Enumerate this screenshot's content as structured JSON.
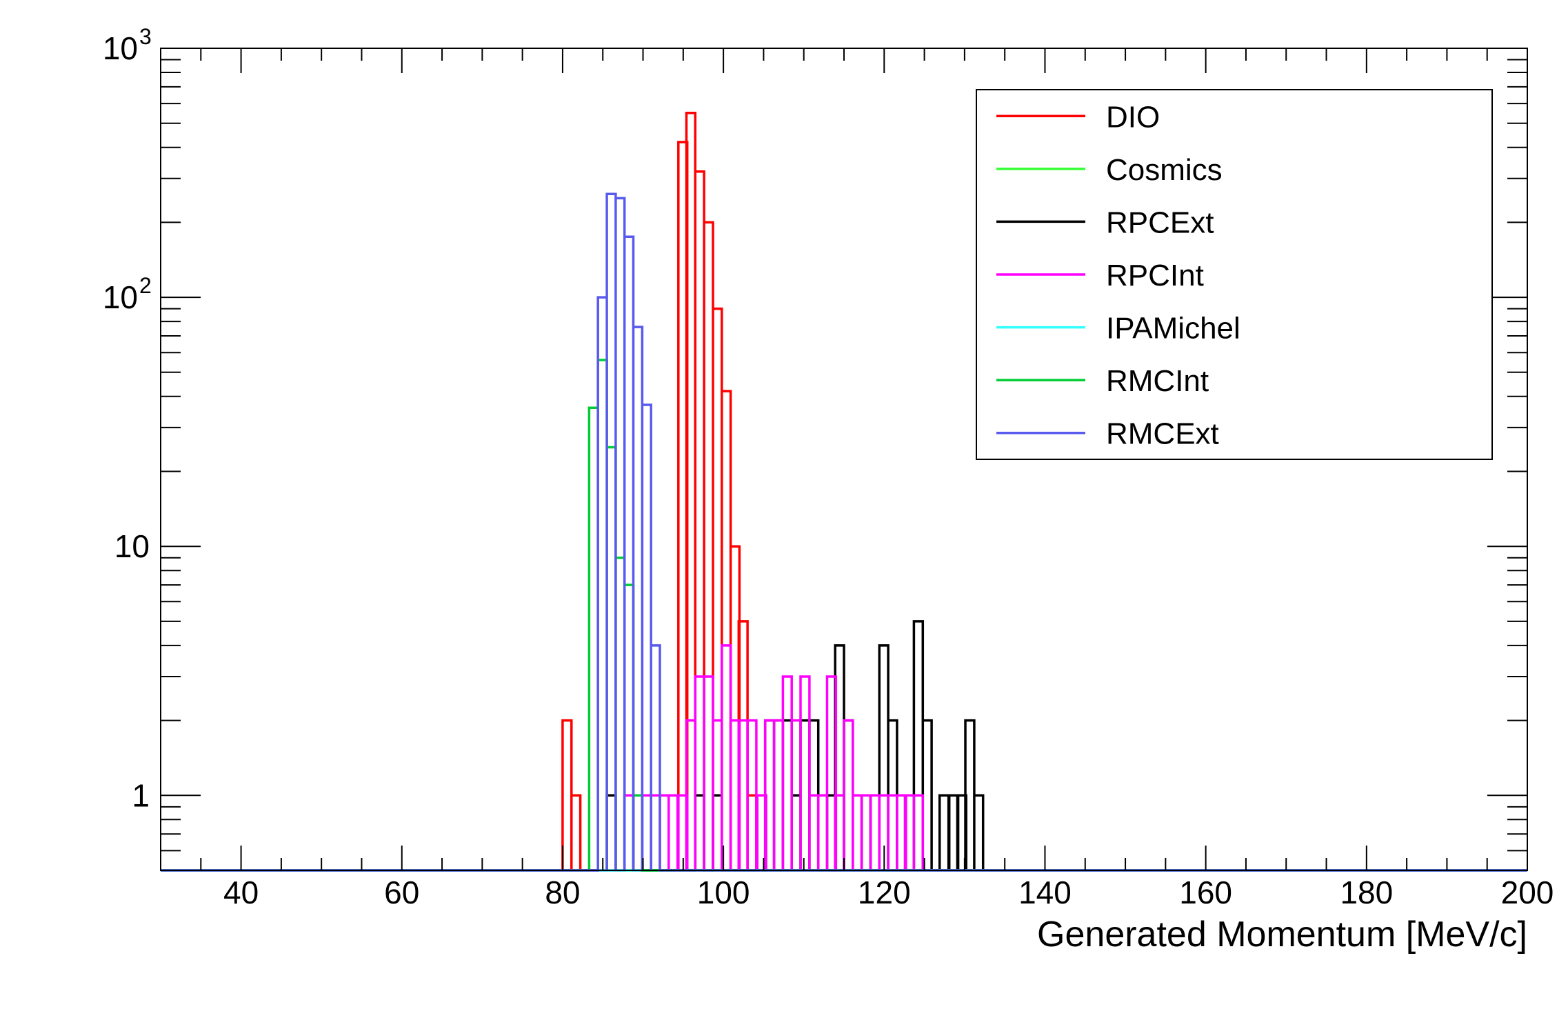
{
  "chart_data": {
    "type": "histogram",
    "title": "",
    "xlabel": "Generated Momentum [MeV/c]",
    "ylabel": "",
    "xlim": [
      30,
      200
    ],
    "ylim": [
      0.5,
      1000
    ],
    "y_log": true,
    "grid": false,
    "legend_position": "top-right",
    "bin_width": 1.1,
    "x_ticks": [
      {
        "value": 40,
        "label": "40"
      },
      {
        "value": 60,
        "label": "60"
      },
      {
        "value": 80,
        "label": "80"
      },
      {
        "value": 100,
        "label": "100"
      },
      {
        "value": 120,
        "label": "120"
      },
      {
        "value": 140,
        "label": "140"
      },
      {
        "value": 160,
        "label": "160"
      },
      {
        "value": 180,
        "label": "180"
      },
      {
        "value": 200,
        "label": "200"
      }
    ],
    "y_ticks": [
      {
        "value": 1,
        "label": "1"
      },
      {
        "value": 10,
        "label": "10"
      },
      {
        "value": 100,
        "base": "10",
        "exp": "2"
      },
      {
        "value": 1000,
        "base": "10",
        "exp": "3"
      }
    ],
    "series": [
      {
        "name": "DIO",
        "color": "#ff0000",
        "bins": [
          [
            80.0,
            2
          ],
          [
            81.1,
            1
          ],
          [
            94.4,
            420
          ],
          [
            95.4,
            550
          ],
          [
            96.5,
            320
          ],
          [
            97.6,
            200
          ],
          [
            98.7,
            90
          ],
          [
            99.8,
            42
          ],
          [
            100.9,
            10
          ],
          [
            101.9,
            5
          ],
          [
            103.0,
            1
          ]
        ]
      },
      {
        "name": "Cosmics",
        "color": "#33ff33",
        "bins": []
      },
      {
        "name": "RPCExt",
        "color": "#000000",
        "bins": [
          [
            85.5,
            1
          ],
          [
            87.7,
            1
          ],
          [
            96.5,
            1
          ],
          [
            98.7,
            1
          ],
          [
            104.2,
            1
          ],
          [
            105.2,
            2
          ],
          [
            106.3,
            2
          ],
          [
            107.4,
            2
          ],
          [
            108.5,
            1
          ],
          [
            109.6,
            2
          ],
          [
            110.7,
            2
          ],
          [
            111.8,
            1
          ],
          [
            112.9,
            1
          ],
          [
            113.9,
            4
          ],
          [
            115.0,
            2
          ],
          [
            116.1,
            1
          ],
          [
            117.2,
            1
          ],
          [
            118.3,
            1
          ],
          [
            119.4,
            4
          ],
          [
            120.5,
            2
          ],
          [
            121.6,
            1
          ],
          [
            122.6,
            1
          ],
          [
            123.7,
            5
          ],
          [
            124.8,
            2
          ],
          [
            126.9,
            1
          ],
          [
            128.1,
            1
          ],
          [
            129.1,
            1
          ],
          [
            130.1,
            2
          ],
          [
            131.2,
            1
          ]
        ]
      },
      {
        "name": "RPCInt",
        "color": "#ff00ff",
        "bins": [
          [
            87.7,
            1
          ],
          [
            89.9,
            1
          ],
          [
            91.0,
            1
          ],
          [
            92.1,
            1
          ],
          [
            93.2,
            1
          ],
          [
            94.4,
            1
          ],
          [
            95.4,
            2
          ],
          [
            96.5,
            3
          ],
          [
            97.6,
            3
          ],
          [
            98.7,
            2
          ],
          [
            99.8,
            4
          ],
          [
            100.9,
            2
          ],
          [
            101.9,
            2
          ],
          [
            103.0,
            2
          ],
          [
            104.2,
            1
          ],
          [
            105.2,
            2
          ],
          [
            106.3,
            2
          ],
          [
            107.4,
            3
          ],
          [
            108.5,
            2
          ],
          [
            109.6,
            3
          ],
          [
            110.7,
            1
          ],
          [
            111.8,
            1
          ],
          [
            112.9,
            3
          ],
          [
            113.9,
            1
          ],
          [
            115.0,
            2
          ],
          [
            116.1,
            1
          ],
          [
            117.2,
            1
          ],
          [
            118.3,
            1
          ],
          [
            119.4,
            1
          ],
          [
            120.5,
            1
          ],
          [
            121.6,
            1
          ],
          [
            122.6,
            1
          ],
          [
            123.7,
            1
          ]
        ]
      },
      {
        "name": "IPAMichel",
        "color": "#33ffff",
        "bins": []
      },
      {
        "name": "RMCInt",
        "color": "#00cc33",
        "bins": [
          [
            83.3,
            36
          ],
          [
            84.4,
            56
          ],
          [
            85.5,
            25
          ],
          [
            86.6,
            9
          ],
          [
            87.7,
            7
          ],
          [
            88.8,
            1
          ]
        ]
      },
      {
        "name": "RMCExt",
        "color": "#5a5aee",
        "bins": [
          [
            84.4,
            100
          ],
          [
            85.5,
            260
          ],
          [
            86.6,
            250
          ],
          [
            87.7,
            175
          ],
          [
            88.8,
            76
          ],
          [
            89.9,
            37
          ],
          [
            91.0,
            4
          ]
        ]
      }
    ]
  }
}
